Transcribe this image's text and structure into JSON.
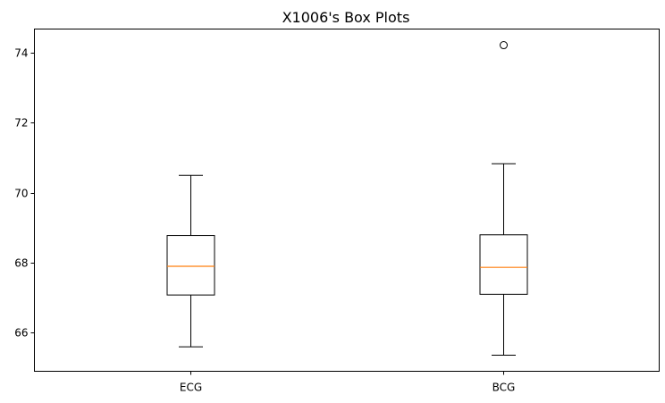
{
  "chart_data": {
    "type": "boxplot",
    "title": "X1006's Box Plots",
    "xlabel": "",
    "ylabel": "",
    "categories": [
      "ECG",
      "BCG"
    ],
    "boxes": [
      {
        "label": "ECG",
        "whisker_low": 65.6,
        "q1": 67.08,
        "median": 67.9,
        "q3": 68.78,
        "whisker_high": 70.5,
        "outliers": []
      },
      {
        "label": "BCG",
        "whisker_low": 65.36,
        "q1": 67.1,
        "median": 67.87,
        "q3": 68.8,
        "whisker_high": 70.83,
        "outliers": [
          74.22
        ]
      }
    ],
    "ylim": [
      64.9,
      74.68
    ],
    "yticks": [
      66,
      68,
      70,
      72,
      74
    ],
    "grid": false,
    "legend": "none",
    "colors": {
      "box": "#000000",
      "median": "#ff7f0e",
      "outlier": "#000000"
    }
  }
}
